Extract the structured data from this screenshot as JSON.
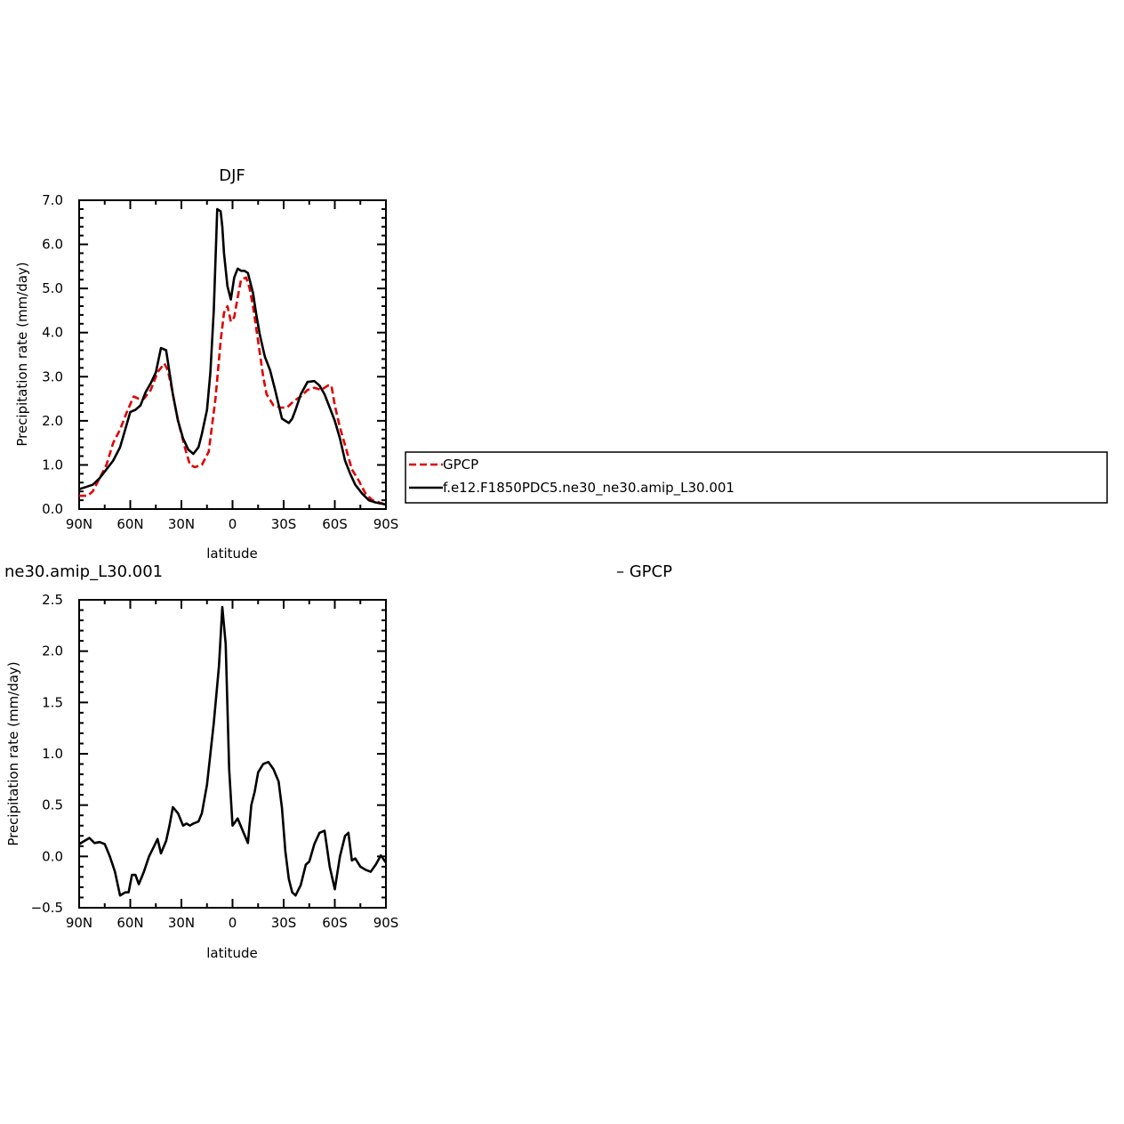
{
  "chart_data": [
    {
      "type": "line",
      "title": "DJF",
      "xlabel": "latitude",
      "ylabel": "Precipitation rate (mm/day)",
      "xlim": [
        90,
        -90
      ],
      "ylim": [
        0,
        7
      ],
      "xtick_values": [
        90,
        60,
        30,
        0,
        -30,
        -60,
        -90
      ],
      "xtick_labels": [
        "90N",
        "60N",
        "30N",
        "0",
        "30S",
        "60S",
        "90S"
      ],
      "ytick_values": [
        0,
        1,
        2,
        3,
        4,
        5,
        6,
        7
      ],
      "ytick_labels": [
        "0.0",
        "1.0",
        "2.0",
        "3.0",
        "4.0",
        "5.0",
        "6.0",
        "7.0"
      ],
      "legend_placement": "right",
      "series": [
        {
          "name": "GPCP",
          "color": "#e00000",
          "dash": "dashed",
          "x": [
            90,
            85,
            82,
            78,
            74,
            70,
            66,
            62,
            58,
            55,
            52,
            48,
            44,
            40,
            38,
            36,
            32,
            28,
            25,
            22,
            18,
            14,
            10,
            7,
            5,
            3,
            1,
            -1,
            -3,
            -5,
            -8,
            -10,
            -12,
            -15,
            -18,
            -20,
            -24,
            -28,
            -32,
            -36,
            -40,
            -44,
            -48,
            -52,
            -56,
            -58,
            -60,
            -63,
            -66,
            -70,
            -74,
            -78,
            -82,
            -86,
            -90
          ],
          "y": [
            0.3,
            0.3,
            0.4,
            0.7,
            1.0,
            1.5,
            1.8,
            2.2,
            2.55,
            2.5,
            2.5,
            2.7,
            3.1,
            3.3,
            3.15,
            2.8,
            2.0,
            1.4,
            1.0,
            0.95,
            1.0,
            1.3,
            2.5,
            3.8,
            4.45,
            4.6,
            4.25,
            4.35,
            4.8,
            5.2,
            5.25,
            5.0,
            4.6,
            3.8,
            3.0,
            2.6,
            2.35,
            2.3,
            2.3,
            2.45,
            2.55,
            2.7,
            2.75,
            2.7,
            2.8,
            2.8,
            2.35,
            1.85,
            1.45,
            0.9,
            0.65,
            0.35,
            0.2,
            0.15,
            0.1
          ]
        },
        {
          "name": "f.e12.F1850PDC5.ne30_ne30.amip_L30.001",
          "color": "#000000",
          "dash": "solid",
          "x": [
            90,
            86,
            82,
            78,
            74,
            70,
            66,
            63,
            60,
            57,
            54,
            51,
            48,
            45,
            42,
            39,
            37,
            35,
            32,
            29,
            26,
            23,
            20,
            18,
            15,
            13,
            11,
            9,
            7,
            6,
            5,
            3,
            1,
            -1,
            -3,
            -5,
            -7,
            -9,
            -12,
            -14,
            -16,
            -19,
            -22,
            -25,
            -29,
            -33,
            -35,
            -37,
            -40,
            -44,
            -48,
            -51,
            -54,
            -57,
            -60,
            -63,
            -66,
            -69,
            -72,
            -76,
            -80,
            -84,
            -88,
            -90
          ],
          "y": [
            0.45,
            0.5,
            0.55,
            0.7,
            0.9,
            1.1,
            1.4,
            1.8,
            2.2,
            2.25,
            2.35,
            2.65,
            2.85,
            3.1,
            3.65,
            3.6,
            3.1,
            2.6,
            2.0,
            1.6,
            1.35,
            1.25,
            1.4,
            1.7,
            2.25,
            3.1,
            4.5,
            6.8,
            6.75,
            6.4,
            5.8,
            5.05,
            4.75,
            5.25,
            5.45,
            5.4,
            5.4,
            5.35,
            4.9,
            4.4,
            3.95,
            3.45,
            3.15,
            2.7,
            2.05,
            1.95,
            2.05,
            2.25,
            2.6,
            2.88,
            2.9,
            2.8,
            2.6,
            2.3,
            2.0,
            1.6,
            1.1,
            0.8,
            0.55,
            0.35,
            0.2,
            0.15,
            0.12,
            0.1
          ]
        }
      ]
    },
    {
      "type": "line",
      "title": "ne30.amip_L30.001",
      "subtitle": "– GPCP",
      "xlabel": "latitude",
      "ylabel": "Precipitation rate (mm/day)",
      "xlim": [
        90,
        -90
      ],
      "ylim": [
        -0.5,
        2.5
      ],
      "xtick_values": [
        90,
        60,
        30,
        0,
        -30,
        -60,
        -90
      ],
      "xtick_labels": [
        "90N",
        "60N",
        "30N",
        "0",
        "30S",
        "60S",
        "90S"
      ],
      "ytick_values": [
        -0.5,
        0,
        0.5,
        1,
        1.5,
        2,
        2.5
      ],
      "ytick_labels": [
        "−0.5",
        "0.0",
        "0.5",
        "1.0",
        "1.5",
        "2.0",
        "2.5"
      ],
      "series": [
        {
          "color": "#000000",
          "dash": "solid",
          "x": [
            90,
            87,
            84,
            81,
            78,
            75,
            72,
            69,
            66,
            63,
            61,
            59,
            57,
            55,
            52,
            49,
            46,
            44,
            42,
            39,
            37,
            35,
            32,
            29,
            27,
            25,
            23,
            20,
            18,
            15,
            13,
            11,
            8,
            6,
            4,
            2,
            0,
            -3,
            -6,
            -9,
            -11,
            -13,
            -15,
            -18,
            -21,
            -24,
            -27,
            -29,
            -31,
            -33,
            -35,
            -37,
            -40,
            -43,
            -45,
            -48,
            -51,
            -54,
            -57,
            -60,
            -63,
            -66,
            -68,
            -70,
            -72,
            -75,
            -78,
            -81,
            -84,
            -87,
            -90
          ],
          "y": [
            0.12,
            0.15,
            0.18,
            0.13,
            0.14,
            0.12,
            0.0,
            -0.15,
            -0.38,
            -0.35,
            -0.35,
            -0.18,
            -0.18,
            -0.27,
            -0.15,
            0.0,
            0.1,
            0.17,
            0.03,
            0.15,
            0.3,
            0.48,
            0.42,
            0.3,
            0.32,
            0.3,
            0.32,
            0.34,
            0.42,
            0.7,
            1.0,
            1.3,
            1.85,
            2.43,
            2.07,
            0.85,
            0.3,
            0.37,
            0.25,
            0.13,
            0.5,
            0.63,
            0.82,
            0.9,
            0.92,
            0.85,
            0.73,
            0.47,
            0.05,
            -0.22,
            -0.35,
            -0.38,
            -0.28,
            -0.08,
            -0.05,
            0.12,
            0.23,
            0.25,
            -0.1,
            -0.32,
            0.0,
            0.2,
            0.23,
            -0.04,
            -0.02,
            -0.1,
            -0.13,
            -0.15,
            -0.08,
            0.01,
            -0.06
          ]
        }
      ]
    }
  ]
}
